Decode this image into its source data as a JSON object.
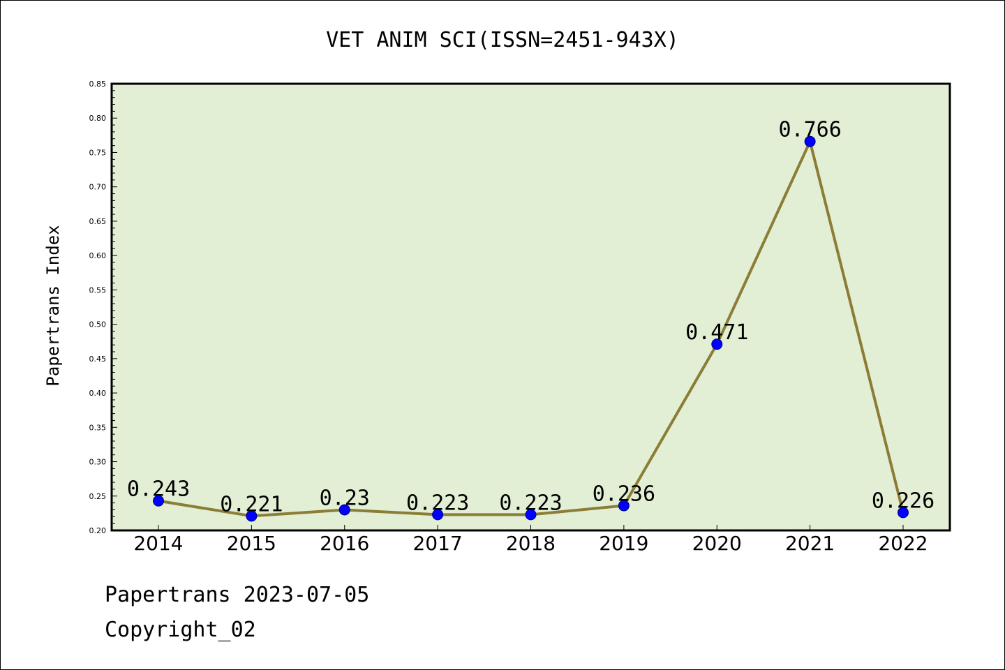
{
  "chart_data": {
    "type": "line",
    "title": "VET ANIM SCI(ISSN=2451-943X)",
    "xlabel": "",
    "ylabel": "Papertrans Index",
    "categories": [
      "2014",
      "2015",
      "2016",
      "2017",
      "2018",
      "2019",
      "2020",
      "2021",
      "2022"
    ],
    "values": [
      0.243,
      0.221,
      0.23,
      0.223,
      0.223,
      0.236,
      0.471,
      0.766,
      0.226
    ],
    "value_labels": [
      "0.243",
      "0.221",
      "0.23",
      "0.223",
      "0.223",
      "0.236",
      "0.471",
      "0.766",
      "0.226"
    ],
    "ylim": [
      0.2,
      0.85
    ],
    "yticks": [
      "0.20",
      "0.25",
      "0.30",
      "0.35",
      "0.40",
      "0.45",
      "0.50",
      "0.55",
      "0.60",
      "0.65",
      "0.70",
      "0.75",
      "0.80",
      "0.85"
    ],
    "grid": false,
    "colors": {
      "plot_background": "#e2efd5",
      "line": "#8b7d35",
      "marker": "#0000ff",
      "marker_edge": "#00007a"
    }
  },
  "footer": {
    "line1": "Papertrans 2023-07-05",
    "line2": "Copyright_02"
  }
}
